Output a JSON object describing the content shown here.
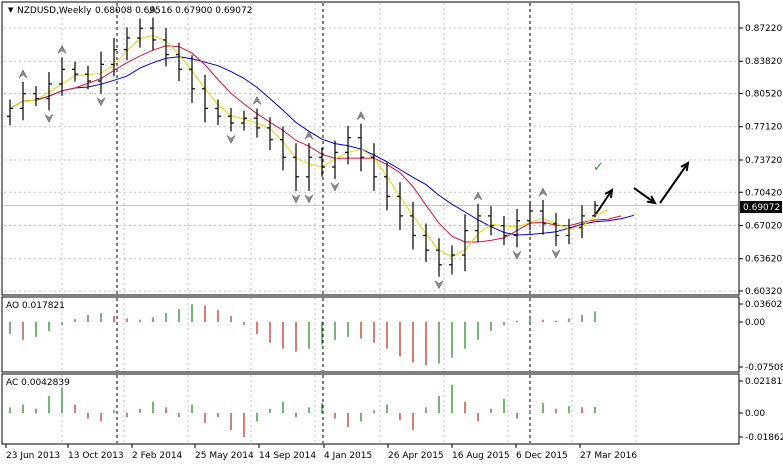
{
  "main_header": {
    "symbol": "NZDUSD,Weekly",
    "ohlc": "0.68008 0.69516 0.67900 0.69072"
  },
  "price_ticks": [
    "0.87220",
    "0.83820",
    "0.80520",
    "0.77120",
    "0.73720",
    "0.70420",
    "0.67020",
    "0.63620",
    "0.60320"
  ],
  "current_price": "0.69072",
  "ao_header": "AO 0.017821",
  "ao_ticks": [
    "0.03602",
    "0.00",
    "-0.075085"
  ],
  "ac_header": "AC 0.0042839",
  "ac_ticks": [
    "0.021810",
    "0.00",
    "-0.018624"
  ],
  "date_labels": [
    "23 Jun 2013",
    "13 Oct 2013",
    "2 Feb 2014",
    "25 May 2014",
    "14 Sep 2014",
    "4 Jan 2015",
    "26 Apr 2015",
    "16 Aug 2015",
    "6 Dec 2015",
    "27 Mar 2016"
  ],
  "colors": {
    "bars": "#000000",
    "blue_ma": "#0000cd",
    "red_ma": "#dc143c",
    "yellow_ma": "#ffff00",
    "ao_up": "#2e8b2e",
    "ao_down": "#c0392b",
    "grid": "#c0c0c0",
    "highlight": "#000080",
    "check": "#2ca02c"
  },
  "chart_data": [
    {
      "type": "candlestick",
      "title": "NZDUSD,Weekly",
      "ylim": [
        0.6,
        0.89
      ],
      "x_labels": [
        "23 Jun 2013",
        "13 Oct 2013",
        "2 Feb 2014",
        "25 May 2014",
        "14 Sep 2014",
        "4 Jan 2015",
        "26 Apr 2015",
        "16 Aug 2015",
        "6 Dec 2015",
        "27 Mar 2016"
      ],
      "close_path": [
        0.79,
        0.805,
        0.8,
        0.815,
        0.83,
        0.825,
        0.818,
        0.835,
        0.85,
        0.862,
        0.872,
        0.86,
        0.845,
        0.83,
        0.81,
        0.79,
        0.782,
        0.775,
        0.78,
        0.77,
        0.758,
        0.74,
        0.72,
        0.74,
        0.73,
        0.745,
        0.76,
        0.74,
        0.72,
        0.7,
        0.68,
        0.66,
        0.645,
        0.63,
        0.64,
        0.665,
        0.68,
        0.67,
        0.66,
        0.675,
        0.685,
        0.672,
        0.66,
        0.668,
        0.68,
        0.69
      ],
      "last_ohlc": {
        "open": 0.68008,
        "high": 0.69516,
        "low": 0.679,
        "close": 0.69072
      },
      "grid": true
    },
    {
      "type": "bar",
      "title": "AO 0.017821",
      "ylim": [
        -0.075085,
        0.03602
      ],
      "values": [
        -0.02,
        -0.03,
        -0.025,
        -0.015,
        -0.005,
        0.005,
        0.012,
        0.015,
        0.01,
        0.006,
        0.004,
        0.008,
        0.015,
        0.022,
        0.03,
        0.028,
        0.02,
        0.01,
        -0.005,
        -0.02,
        -0.035,
        -0.045,
        -0.05,
        -0.045,
        -0.038,
        -0.03,
        -0.025,
        -0.028,
        -0.035,
        -0.045,
        -0.058,
        -0.068,
        -0.073,
        -0.07,
        -0.06,
        -0.045,
        -0.03,
        -0.015,
        -0.005,
        0.002,
        0.006,
        0.004,
        0.002,
        0.006,
        0.012,
        0.017821
      ]
    },
    {
      "type": "bar",
      "title": "AC 0.0042839",
      "ylim": [
        -0.018624,
        0.02181
      ],
      "values": [
        0.004,
        0.006,
        0.003,
        0.012,
        0.018,
        0.006,
        -0.004,
        -0.006,
        0.002,
        -0.003,
        0.003,
        0.008,
        0.004,
        -0.003,
        0.006,
        -0.007,
        -0.003,
        -0.012,
        -0.017,
        -0.006,
        0.003,
        0.008,
        -0.003,
        0.004,
        0.007,
        -0.004,
        -0.01,
        -0.006,
        0.002,
        0.006,
        -0.005,
        -0.012,
        0.004,
        0.012,
        0.02,
        0.008,
        -0.006,
        0.003,
        0.01,
        -0.004,
        0.002,
        0.007,
        0.003,
        0.005,
        0.004,
        0.0042839
      ]
    }
  ]
}
